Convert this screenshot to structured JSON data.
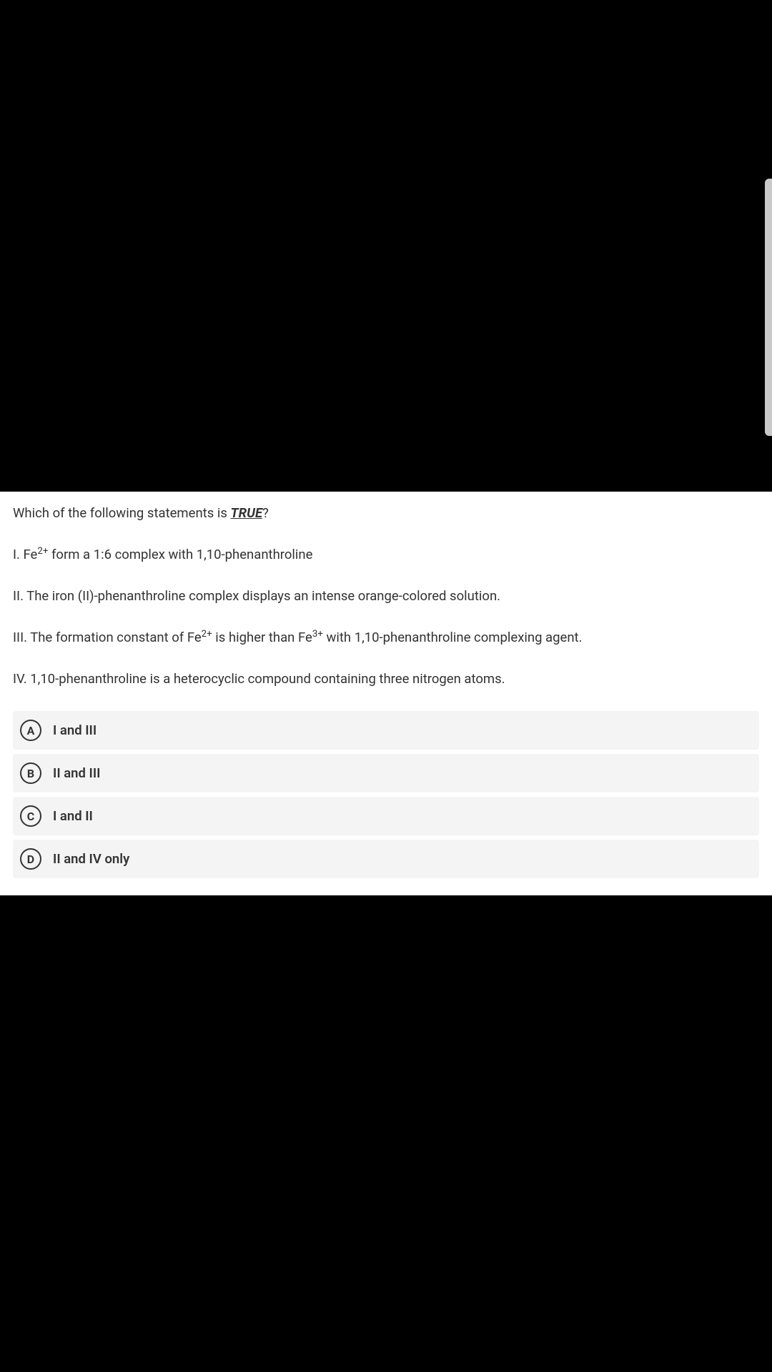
{
  "question": {
    "prompt_prefix": "Which of the following statements is ",
    "true_word": "TRUE",
    "prompt_suffix": "?"
  },
  "statements": {
    "s1_prefix": "I. Fe",
    "s1_sup": "2+",
    "s1_suffix": " form a 1:6 complex with 1,10-phenanthroline",
    "s2": "II. The iron (II)-phenanthroline complex displays an intense orange-colored solution.",
    "s3_prefix": "III. The formation constant of Fe",
    "s3_sup1": "2+",
    "s3_mid": " is higher than Fe",
    "s3_sup2": "3+",
    "s3_suffix": " with 1,10-phenanthroline complexing agent.",
    "s4": "IV. 1,10-phenanthroline is a heterocyclic compound containing three nitrogen atoms."
  },
  "options": [
    {
      "letter": "A",
      "text": "I and III"
    },
    {
      "letter": "B",
      "text": "II and III"
    },
    {
      "letter": "C",
      "text": "I and II"
    },
    {
      "letter": "D",
      "text": "II and IV only"
    }
  ],
  "colors": {
    "page_bg": "#000000",
    "panel_bg": "#ffffff",
    "option_bg": "#f4f4f4",
    "text": "#333333",
    "scrollbar": "#c9c9c9"
  }
}
